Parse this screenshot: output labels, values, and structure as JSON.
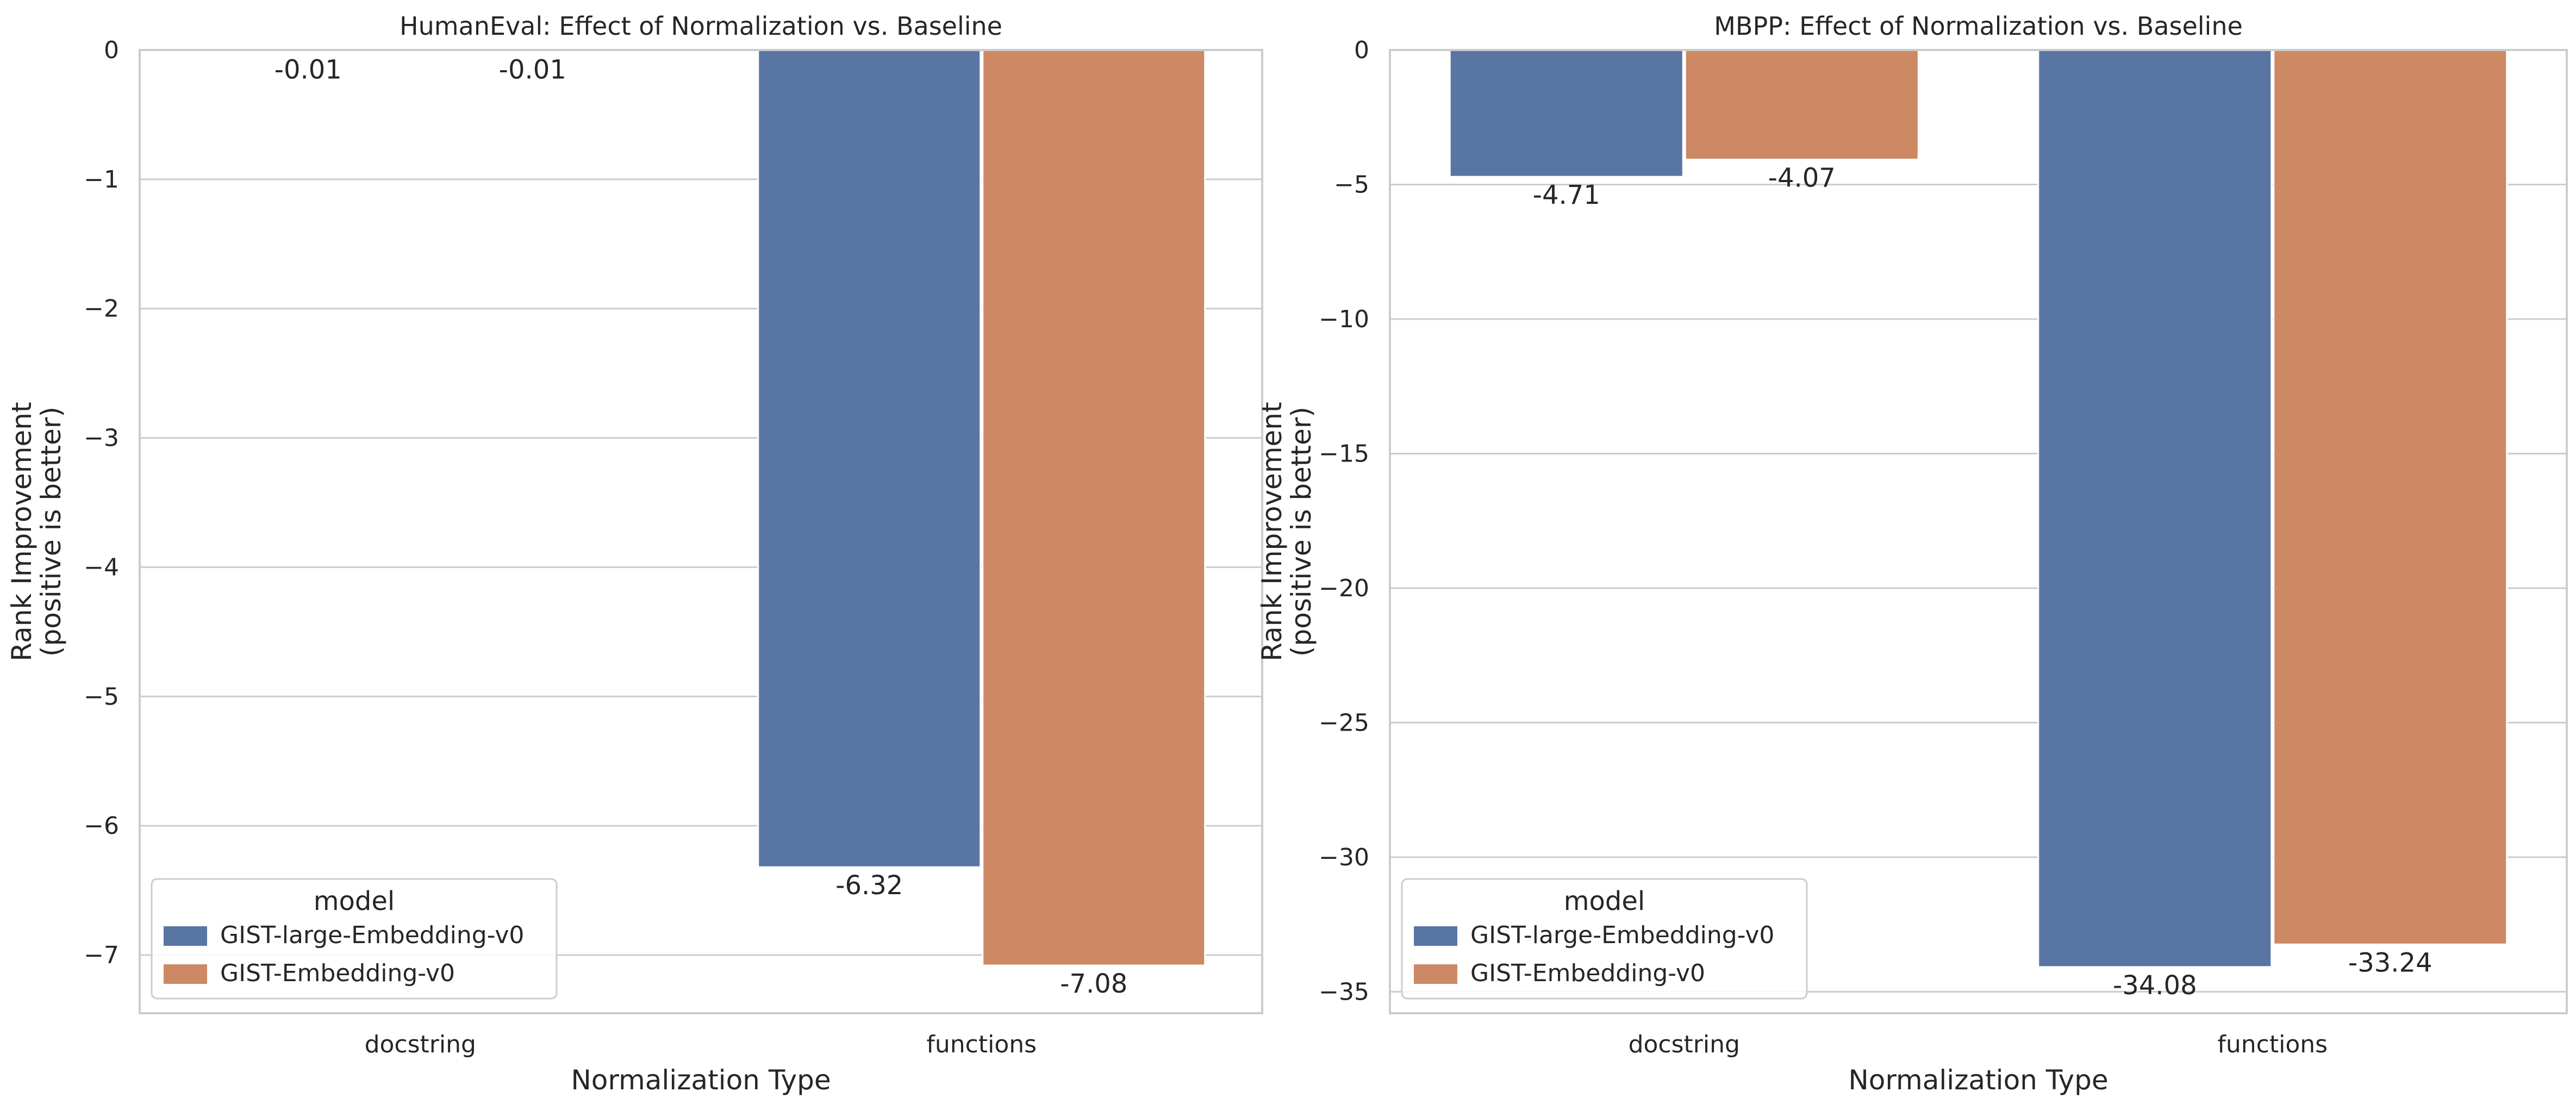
{
  "chart_data": [
    {
      "type": "bar",
      "title": "HumanEval: Effect of Normalization vs. Baseline",
      "xlabel": "Normalization Type",
      "ylabel": [
        "Rank Improvement",
        "(positive is better)"
      ],
      "categories": [
        "docstring",
        "functions"
      ],
      "ylim": [
        -7.45,
        0
      ],
      "yticks": [
        0,
        -1,
        -2,
        -3,
        -4,
        -5,
        -6,
        -7
      ],
      "ytick_labels": [
        "0",
        "−1",
        "−2",
        "−3",
        "−4",
        "−5",
        "−6",
        "−7"
      ],
      "grid": "horizontal",
      "legend": {
        "title": "model",
        "placement": "lower-left",
        "entries": [
          "GIST-large-Embedding-v0",
          "GIST-Embedding-v0"
        ]
      },
      "series": [
        {
          "name": "GIST-large-Embedding-v0",
          "color": "#5975a4",
          "values": [
            -0.01,
            -6.32
          ],
          "labels": [
            "-0.01",
            "-6.32"
          ]
        },
        {
          "name": "GIST-Embedding-v0",
          "color": "#cc8963",
          "values": [
            -0.01,
            -7.08
          ],
          "labels": [
            "-0.01",
            "-7.08"
          ]
        }
      ]
    },
    {
      "type": "bar",
      "title": "MBPP: Effect of Normalization vs. Baseline",
      "xlabel": "Normalization Type",
      "ylabel": [
        "Rank Improvement",
        "(positive is better)"
      ],
      "categories": [
        "docstring",
        "functions"
      ],
      "ylim": [
        -35.8,
        0
      ],
      "yticks": [
        0,
        -5,
        -10,
        -15,
        -20,
        -25,
        -30,
        -35
      ],
      "ytick_labels": [
        "0",
        "−5",
        "−10",
        "−15",
        "−20",
        "−25",
        "−30",
        "−35"
      ],
      "grid": "horizontal",
      "legend": {
        "title": "model",
        "placement": "lower-left",
        "entries": [
          "GIST-large-Embedding-v0",
          "GIST-Embedding-v0"
        ]
      },
      "series": [
        {
          "name": "GIST-large-Embedding-v0",
          "color": "#5975a4",
          "values": [
            -4.71,
            -34.08
          ],
          "labels": [
            "-4.71",
            "-34.08"
          ]
        },
        {
          "name": "GIST-Embedding-v0",
          "color": "#cc8963",
          "values": [
            -4.07,
            -33.24
          ],
          "labels": [
            "-4.07",
            "-33.24"
          ]
        }
      ]
    }
  ]
}
